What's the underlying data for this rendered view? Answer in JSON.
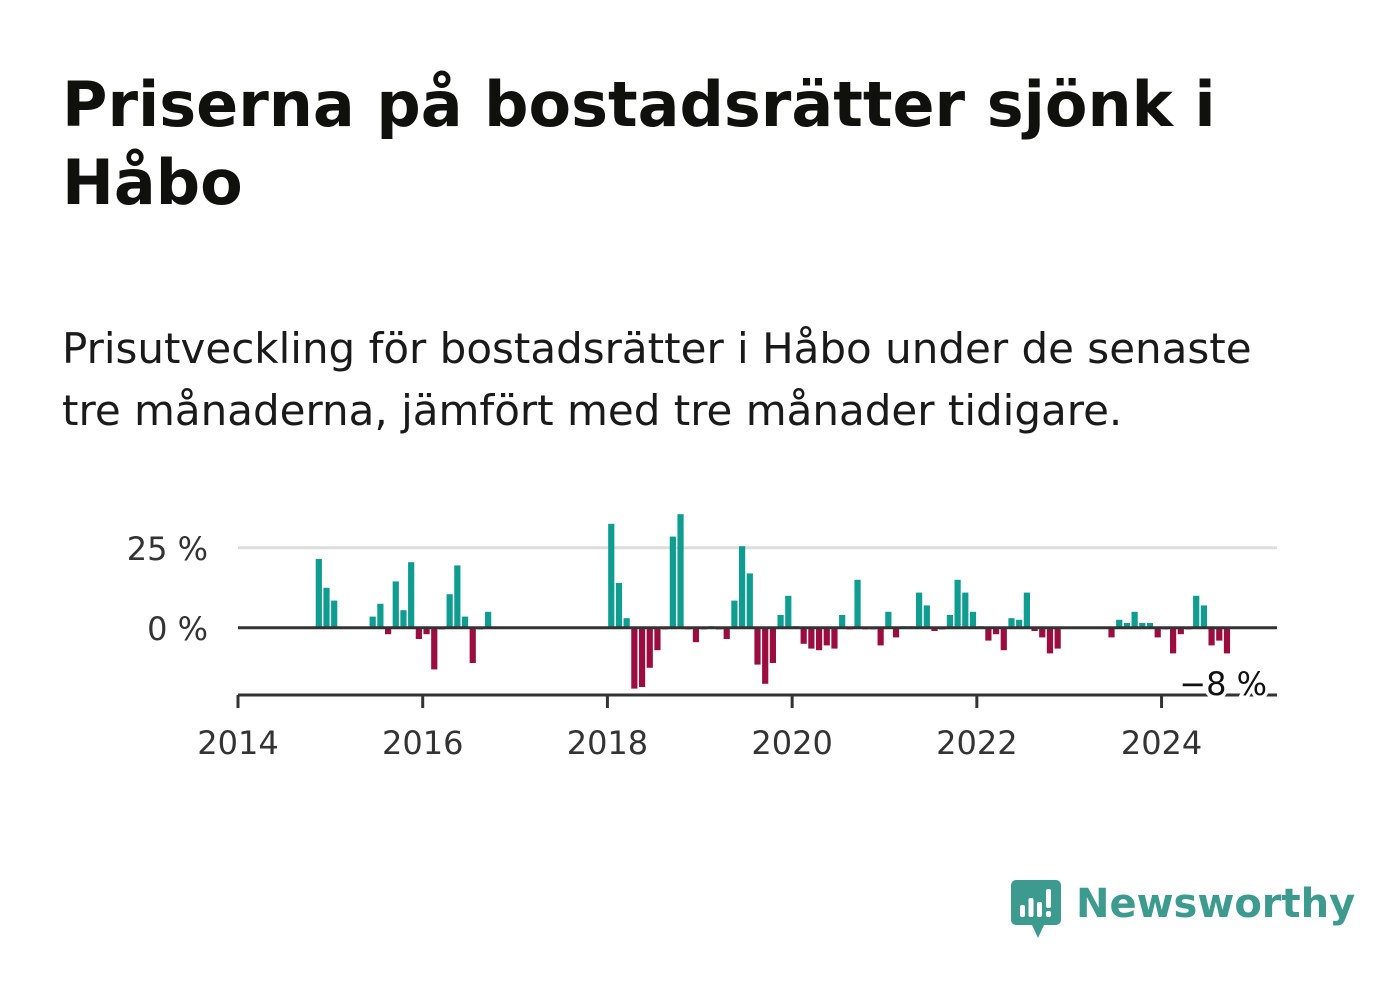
{
  "title": "Priserna på bostadsrätter sjönk i Håbo",
  "subtitle": "Prisutveckling för bostadsrätter i Håbo under de senaste tre månaderna, jämfört med tre månader tidigare.",
  "brand": {
    "name": "Newsworthy",
    "icon": "newsworthy-logo-icon",
    "color": "#3d9a8f"
  },
  "colors": {
    "positive": "#0f9c91",
    "negative": "#9b0d3f",
    "grid": "#dddddd",
    "axis": "#333333"
  },
  "chart_data": {
    "type": "bar",
    "title": "Priserna på bostadsrätter sjönk i Håbo",
    "subtitle": "Prisutveckling för bostadsrätter i Håbo under de senaste tre månaderna, jämfört med tre månader tidigare.",
    "xlabel": "",
    "ylabel": "",
    "unit": "%",
    "x_range": [
      "2014-01",
      "2025-04"
    ],
    "ylim": [
      -21,
      35
    ],
    "y_ticks": [
      {
        "value": 25,
        "label": "25 %"
      },
      {
        "value": 0,
        "label": "0 %"
      }
    ],
    "x_ticks": [
      {
        "date": "2014-01",
        "label": "2014"
      },
      {
        "date": "2016-01",
        "label": "2016"
      },
      {
        "date": "2018-01",
        "label": "2018"
      },
      {
        "date": "2020-01",
        "label": "2020"
      },
      {
        "date": "2022-01",
        "label": "2022"
      },
      {
        "date": "2024-01",
        "label": "2024"
      }
    ],
    "grid": true,
    "last_value_label": "−8 %",
    "x": [
      "2014-11",
      "2014-12",
      "2015-01",
      "2015-06",
      "2015-07",
      "2015-08",
      "2015-09",
      "2015-10",
      "2015-11",
      "2015-12",
      "2016-01",
      "2016-02",
      "2016-03",
      "2016-04",
      "2016-05",
      "2016-06",
      "2016-07",
      "2016-08",
      "2016-09",
      "2018-01",
      "2018-02",
      "2018-03",
      "2018-04",
      "2018-05",
      "2018-06",
      "2018-07",
      "2018-08",
      "2018-09",
      "2018-10",
      "2018-11",
      "2018-12",
      "2019-01",
      "2019-02",
      "2019-03",
      "2019-04",
      "2019-05",
      "2019-06",
      "2019-07",
      "2019-08",
      "2019-09",
      "2019-10",
      "2019-11",
      "2019-12",
      "2020-01",
      "2020-02",
      "2020-03",
      "2020-04",
      "2020-05",
      "2020-06",
      "2020-07",
      "2020-08",
      "2020-09",
      "2020-10",
      "2020-11",
      "2020-12",
      "2021-01",
      "2021-02",
      "2021-03",
      "2021-04",
      "2021-05",
      "2021-06",
      "2021-07",
      "2021-08",
      "2021-09",
      "2021-10",
      "2021-11",
      "2021-12",
      "2022-01",
      "2022-02",
      "2022-03",
      "2022-04",
      "2022-05",
      "2022-06",
      "2022-07",
      "2022-08",
      "2022-09",
      "2022-10",
      "2022-11",
      "2023-06",
      "2023-07",
      "2023-08",
      "2023-09",
      "2023-10",
      "2023-11",
      "2023-12",
      "2024-01",
      "2024-02",
      "2024-03",
      "2024-04",
      "2024-05",
      "2024-06",
      "2024-07",
      "2024-08",
      "2024-09"
    ],
    "values": [
      21.5,
      12.5,
      8.5,
      3.5,
      7.5,
      -2,
      14.5,
      5.5,
      20.5,
      -3.5,
      -2,
      -13,
      -0.5,
      10.5,
      19.5,
      3.5,
      -11,
      -0.5,
      5,
      32.5,
      14,
      3,
      -19,
      -18.5,
      -12.5,
      -7,
      -0.5,
      28.5,
      35.5,
      -0.5,
      -4.5,
      -0.5,
      0.5,
      -0.5,
      -3.5,
      8.5,
      25.5,
      17,
      -11.5,
      -17.5,
      -11,
      4,
      10,
      0.5,
      -5,
      -6.5,
      -7,
      -5.5,
      -6.5,
      4,
      -0.5,
      15,
      -0.5,
      -0.5,
      -5.5,
      5,
      -3,
      0.5,
      0.5,
      11,
      7,
      -1,
      -0.5,
      4,
      15,
      11,
      5,
      0.5,
      -4,
      -2,
      -7,
      3,
      2.5,
      11,
      -1,
      -3,
      -8,
      -6.5,
      -3,
      2.5,
      1.5,
      5,
      1.5,
      1.5,
      -3,
      -0.5,
      -8,
      -2,
      -0.5,
      10,
      7,
      -5.5,
      -4,
      -8
    ]
  }
}
